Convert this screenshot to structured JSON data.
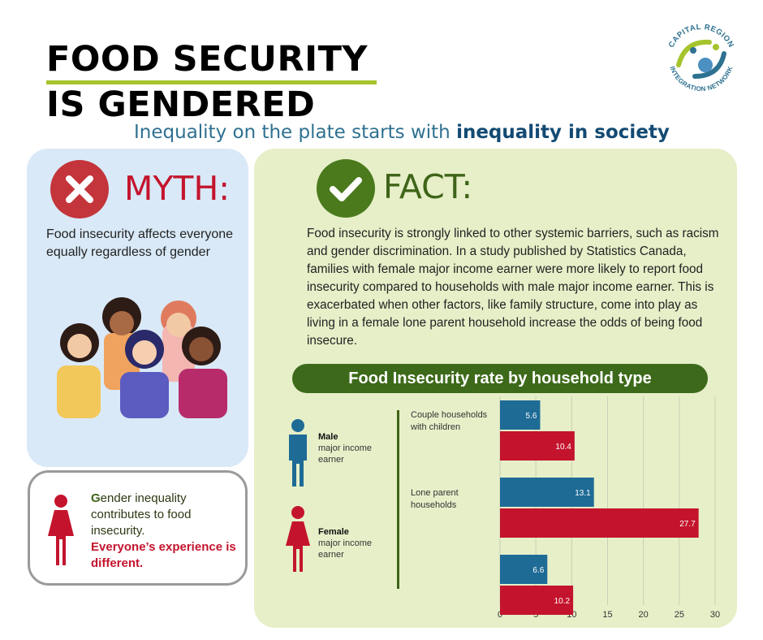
{
  "header": {
    "title_line1": "FOOD SECURITY",
    "title_line2": "IS GENDERED",
    "subtitle_plain": "Inequality on the plate starts with ",
    "subtitle_bold": "inequality in society"
  },
  "logo": {
    "text_top": "CAPITAL REGION",
    "text_bottom": "INTEGRATION NETWORK"
  },
  "myth": {
    "label": "MYTH:",
    "text": "Food insecurity affects everyone equally regardless of gender",
    "icon": "x-icon"
  },
  "fact": {
    "label": "FACT:",
    "text": "Food insecurity is strongly linked to other systemic barriers, such as racism and gender discrimination. In a study published by Statistics Canada, families with female major income earner were more likely to report food insecurity compared to households with male major income earner. This is exacerbated when other factors, like family structure, come into play as living in a female lone parent household increase the odds of being food insecure.",
    "icon": "check-icon"
  },
  "gender_note": {
    "first_letter": "G",
    "line_rest": "ender inequality contributes to food insecurity.",
    "emphasis": "Everyone’s experience is different."
  },
  "colors": {
    "male": "#1e6b96",
    "female": "#c4142d",
    "green": "#3f6418",
    "lime": "#a5c42c"
  },
  "chart_data": {
    "type": "bar",
    "orientation": "horizontal",
    "title": "Food Insecurity rate by household type",
    "categories": [
      "Couple households with children",
      "Lone parent households",
      ""
    ],
    "series": [
      {
        "name": "Male major income earner",
        "values": [
          5.6,
          13.1,
          6.6
        ],
        "color": "#1e6b96"
      },
      {
        "name": "Female major income earner",
        "values": [
          10.4,
          27.7,
          10.2
        ],
        "color": "#c4142d"
      }
    ],
    "xlim": [
      0,
      30
    ],
    "xticks": [
      0,
      5,
      10,
      15,
      20,
      25,
      30
    ],
    "grid": true,
    "legend": {
      "male_bold": "Male",
      "male_rest": "major income earner",
      "female_bold": "Female",
      "female_rest": "major income earner"
    }
  }
}
